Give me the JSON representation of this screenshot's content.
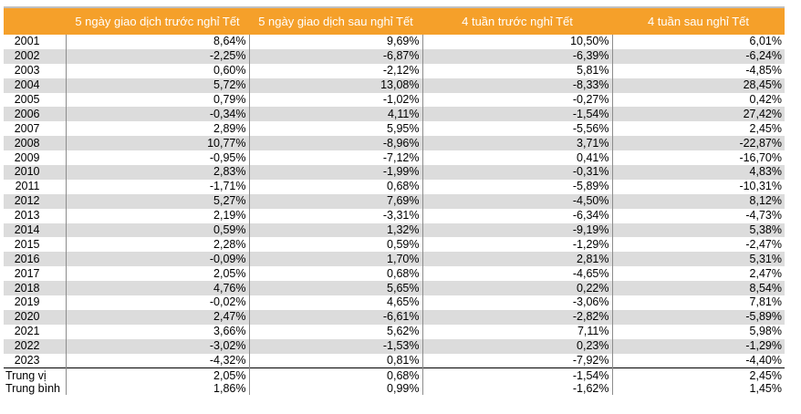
{
  "headers": [
    "",
    "5 ngày giao dịch trước nghỉ Tết",
    "5 ngày giao dịch sau nghỉ Tết",
    "4 tuần trước nghỉ Tết",
    "4 tuần sau nghỉ Tết"
  ],
  "rows": [
    [
      "2001",
      "8,64%",
      "9,69%",
      "10,50%",
      "6,01%"
    ],
    [
      "2002",
      "-2,25%",
      "-6,87%",
      "-6,39%",
      "-6,24%"
    ],
    [
      "2003",
      "0,60%",
      "-2,12%",
      "5,81%",
      "-4,85%"
    ],
    [
      "2004",
      "5,72%",
      "13,08%",
      "-8,33%",
      "28,45%"
    ],
    [
      "2005",
      "0,79%",
      "-1,02%",
      "-0,27%",
      "0,42%"
    ],
    [
      "2006",
      "-0,34%",
      "4,11%",
      "-1,54%",
      "27,42%"
    ],
    [
      "2007",
      "2,89%",
      "5,95%",
      "-5,56%",
      "2,45%"
    ],
    [
      "2008",
      "10,77%",
      "-8,96%",
      "3,71%",
      "-22,87%"
    ],
    [
      "2009",
      "-0,95%",
      "-7,12%",
      "0,41%",
      "-16,70%"
    ],
    [
      "2010",
      "2,83%",
      "-1,99%",
      "-0,31%",
      "4,83%"
    ],
    [
      "2011",
      "-1,71%",
      "0,68%",
      "-5,89%",
      "-10,31%"
    ],
    [
      "2012",
      "5,27%",
      "7,69%",
      "-4,50%",
      "8,12%"
    ],
    [
      "2013",
      "2,19%",
      "-3,31%",
      "-6,34%",
      "-4,73%"
    ],
    [
      "2014",
      "0,59%",
      "1,32%",
      "-9,19%",
      "5,38%"
    ],
    [
      "2015",
      "2,28%",
      "0,59%",
      "-1,29%",
      "-2,47%"
    ],
    [
      "2016",
      "-0,09%",
      "1,70%",
      "2,81%",
      "5,31%"
    ],
    [
      "2017",
      "2,05%",
      "0,68%",
      "-4,65%",
      "2,47%"
    ],
    [
      "2018",
      "4,76%",
      "5,65%",
      "0,22%",
      "8,54%"
    ],
    [
      "2019",
      "-0,02%",
      "4,65%",
      "-3,06%",
      "7,81%"
    ],
    [
      "2020",
      "2,47%",
      "-6,61%",
      "-2,82%",
      "-5,89%"
    ],
    [
      "2021",
      "3,66%",
      "5,62%",
      "7,11%",
      "5,98%"
    ],
    [
      "2022",
      "-3,02%",
      "-1,53%",
      "0,23%",
      "-1,29%"
    ],
    [
      "2023",
      "-4,32%",
      "0,81%",
      "-7,92%",
      "-4,40%"
    ]
  ],
  "summary": [
    [
      "Trung vị",
      "2,05%",
      "0,68%",
      "-1,54%",
      "2,45%"
    ],
    [
      "Trung bình",
      "1,86%",
      "0,99%",
      "-1,62%",
      "1,45%"
    ]
  ],
  "colors": {
    "header_bg": "#f5a02a",
    "header_text": "#ffffff",
    "stripe": "#dcdcdc"
  }
}
